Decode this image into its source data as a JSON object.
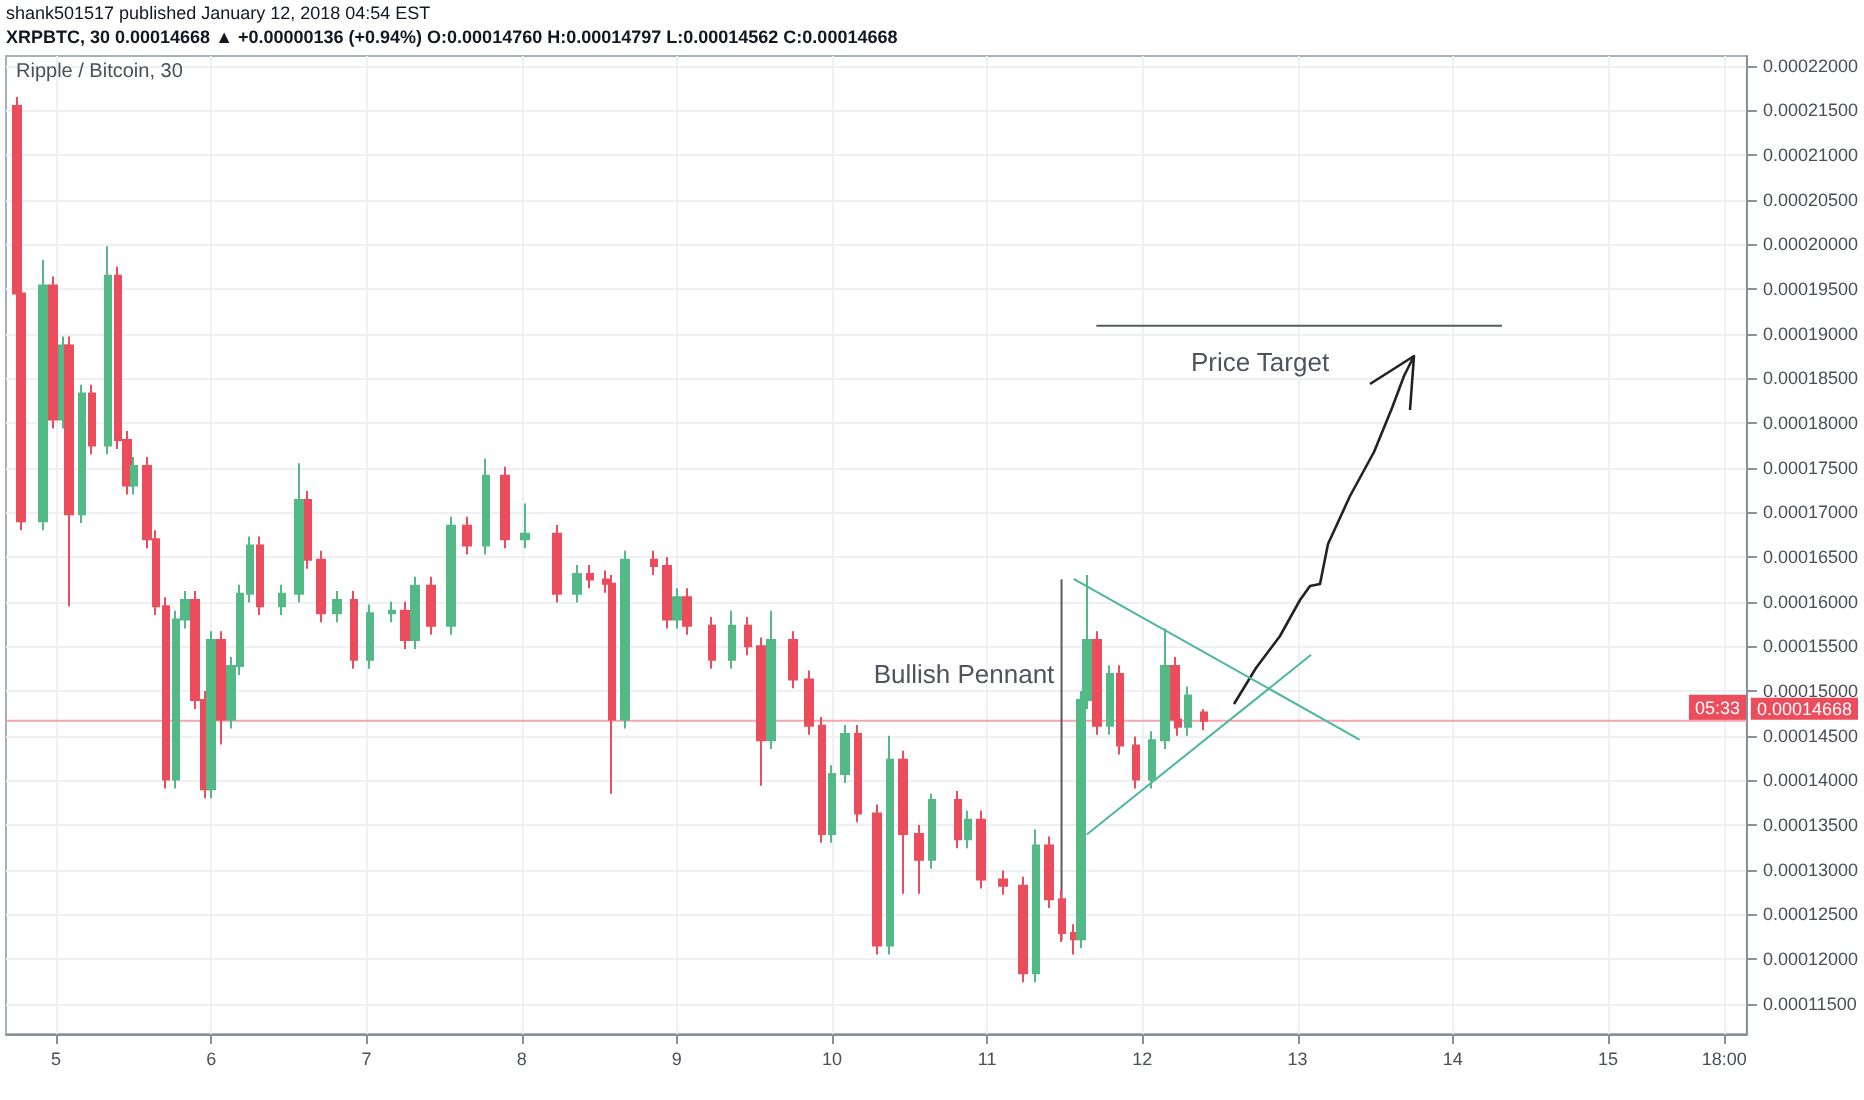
{
  "chart_data": {
    "type": "candlestick",
    "title": "Ripple / Bitcoin, 30",
    "subtitle": "XRPBTC, 30 0.00014668 ▲ +0.00000136 (+0.94%) O:0.00014760 H:0.00014797 L:0.00014562 C:0.00014668",
    "annotations": [
      "shank501517 published January 12, 2018 04:54 EST",
      "05:33",
      "Bullish Pennant",
      "Price Target"
    ],
    "colors": [
      "#eb4d5c",
      "#eb4d5c",
      "#53b987",
      "#eb4d5c",
      "#53b987",
      "#eb4d5c",
      "#53b987",
      "#eb4d5c",
      "#53b987",
      "#eb4d5c",
      "#eb4d5c",
      "#53b987",
      "#eb4d5c",
      "#eb4d5c",
      "#eb4d5c",
      "#53b987",
      "#53b987",
      "#eb4d5c",
      "#eb4d5c",
      "#53b987",
      "#eb4d5c",
      "#53b987",
      "#53b987",
      "#53b987",
      "#eb4d5c",
      "#53b987",
      "#53b987",
      "#eb4d5c",
      "#eb4d5c",
      "#53b987",
      "#eb4d5c",
      "#53b987",
      "#53b987",
      "#eb4d5c",
      "#53b987",
      "#eb4d5c",
      "#53b987",
      "#eb4d5c",
      "#53b987",
      "#eb4d5c",
      "#53b987",
      "#eb4d5c",
      "#53b987",
      "#eb4d5c",
      "#eb4d5c",
      "#eb4d5c",
      "#53b987",
      "#eb4d5c",
      "#eb4d5c",
      "#53b987",
      "#eb4d5c",
      "#eb4d5c",
      "#53b987",
      "#eb4d5c",
      "#eb4d5c",
      "#53b987",
      "#eb4d5c",
      "#eb4d5c",
      "#eb4d5c",
      "#53b987",
      "#53b987",
      "#eb4d5c",
      "#eb4d5c",
      "#53b987",
      "#eb4d5c",
      "#eb4d5c",
      "#53b987",
      "#eb4d5c",
      "#53b987",
      "#eb4d5c",
      "#eb4d5c",
      "#eb4d5c",
      "#53b987",
      "#eb4d5c",
      "#eb4d5c",
      "#eb4d5c",
      "#53b987",
      "#53b987",
      "#eb4d5c",
      "#53b987",
      "#eb4d5c",
      "#eb4d5c",
      "#53b987",
      "#53b987",
      "#eb4d5c",
      "#eb4d5c",
      "#53b987",
      "#eb4d5c"
    ],
    "x": [
      "2018-01-04T18:00",
      "2018-01-04T18:30",
      "2018-01-04T22:00",
      "2018-01-04T23:30",
      "2018-01-05T01:00",
      "2018-01-05T02:00",
      "2018-01-05T04:00",
      "2018-01-05T05:30",
      "2018-01-05T08:00",
      "2018-01-05T09:30",
      "2018-01-05T11:00",
      "2018-01-05T12:00",
      "2018-01-05T14:00",
      "2018-01-05T15:30",
      "2018-01-05T17:00",
      "2018-01-05T18:30",
      "2018-01-05T20:00",
      "2018-01-05T21:30",
      "2018-01-05T23:00",
      "2018-01-06T00:00",
      "2018-01-06T01:30",
      "2018-01-06T03:00",
      "2018-01-06T04:30",
      "2018-01-06T06:00",
      "2018-01-06T07:30",
      "2018-01-06T11:00",
      "2018-01-06T13:30",
      "2018-01-06T15:00",
      "2018-01-06T17:00",
      "2018-01-06T19:30",
      "2018-01-06T22:00",
      "2018-01-07T00:30",
      "2018-01-07T04:00",
      "2018-01-07T06:00",
      "2018-01-07T07:30",
      "2018-01-07T10:00",
      "2018-01-07T13:00",
      "2018-01-07T15:30",
      "2018-01-07T18:30",
      "2018-01-07T21:30",
      "2018-01-08T00:30",
      "2018-01-08T05:30",
      "2018-01-08T08:30",
      "2018-01-08T10:30",
      "2018-01-08T13:00",
      "2018-01-08T14:00",
      "2018-01-08T16:00",
      "2018-01-08T20:30",
      "2018-01-08T22:30",
      "2018-01-09T00:00",
      "2018-01-09T01:30",
      "2018-01-09T05:30",
      "2018-01-09T08:30",
      "2018-01-09T11:00",
      "2018-01-09T13:00",
      "2018-01-09T14:30",
      "2018-01-09T18:00",
      "2018-01-09T20:30",
      "2018-01-09T22:30",
      "2018-01-10T00:00",
      "2018-01-10T02:00",
      "2018-01-10T04:00",
      "2018-01-10T07:00",
      "2018-01-10T09:00",
      "2018-01-10T11:00",
      "2018-01-10T13:30",
      "2018-01-10T15:30",
      "2018-01-10T19:30",
      "2018-01-10T21:00",
      "2018-01-10T23:00",
      "2018-01-11T02:30",
      "2018-01-11T05:30",
      "2018-01-11T07:30",
      "2018-01-11T09:30",
      "2018-01-11T11:30",
      "2018-01-11T13:30",
      "2018-01-11T14:30",
      "2018-01-11T15:30",
      "2018-01-11T17:00",
      "2018-01-11T19:00",
      "2018-01-11T20:30",
      "2018-01-11T23:00",
      "2018-01-12T01:30",
      "2018-01-12T03:30",
      "2018-01-12T05:00",
      "2018-01-12T05:30",
      "2018-01-12T07:00",
      "2018-01-12T09:30"
    ],
    "ohlc": [
      [
        0.0002155,
        0.0002165,
        0.0001935,
        0.0001945
      ],
      [
        0.0001945,
        0.0001955,
        0.000168,
        0.000169
      ],
      [
        0.000169,
        0.0001983,
        0.000168,
        0.0001954
      ],
      [
        0.0001954,
        0.0001964,
        0.0001794,
        0.0001804
      ],
      [
        0.0001804,
        0.0001897,
        0.0001794,
        0.0001887
      ],
      [
        0.0001887,
        0.0001897,
        0.0001595,
        0.0001698
      ],
      [
        0.0001698,
        0.0001843,
        0.0001688,
        0.0001833
      ],
      [
        0.0001833,
        0.0001843,
        0.0001765,
        0.0001775
      ],
      [
        0.0001775,
        0.0001998,
        0.0001765,
        0.0001965
      ],
      [
        0.0001965,
        0.0001975,
        0.0001771,
        0.0001781
      ],
      [
        0.0001781,
        0.0001791,
        0.000172,
        0.000173
      ],
      [
        0.000173,
        0.0001762,
        0.000172,
        0.0001752
      ],
      [
        0.0001752,
        0.0001762,
        0.000166,
        0.000167
      ],
      [
        0.000167,
        0.000168,
        0.0001585,
        0.0001595
      ],
      [
        0.0001595,
        0.0001605,
        0.0001391,
        0.0001401
      ],
      [
        0.0001401,
        0.000159,
        0.0001391,
        0.000158
      ],
      [
        0.000158,
        0.0001612,
        0.000157,
        0.0001602
      ],
      [
        0.0001602,
        0.0001612,
        0.000148,
        0.000149
      ],
      [
        0.000149,
        0.00015,
        0.000138,
        0.000139
      ],
      [
        0.000139,
        0.0001567,
        0.000138,
        0.0001557
      ],
      [
        0.0001557,
        0.0001567,
        0.000144,
        0.0001468
      ],
      [
        0.0001468,
        0.0001538,
        0.0001458,
        0.0001528
      ],
      [
        0.0001528,
        0.0001619,
        0.0001518,
        0.0001609
      ],
      [
        0.0001609,
        0.0001673,
        0.0001599,
        0.0001663
      ],
      [
        0.0001663,
        0.0001673,
        0.0001585,
        0.0001595
      ],
      [
        0.0001595,
        0.0001619,
        0.0001585,
        0.0001609
      ],
      [
        0.0001609,
        0.0001755,
        0.0001599,
        0.0001714
      ],
      [
        0.0001714,
        0.0001724,
        0.0001637,
        0.0001647
      ],
      [
        0.0001647,
        0.0001657,
        0.0001577,
        0.0001587
      ],
      [
        0.0001587,
        0.0001612,
        0.0001577,
        0.0001602
      ],
      [
        0.0001602,
        0.0001612,
        0.0001525,
        0.0001535
      ],
      [
        0.0001535,
        0.0001597,
        0.0001525,
        0.0001587
      ],
      [
        0.0001587,
        0.00016,
        0.0001577,
        0.000159
      ],
      [
        0.000159,
        0.00016,
        0.0001547,
        0.0001557
      ],
      [
        0.0001557,
        0.0001628,
        0.0001547,
        0.0001618
      ],
      [
        0.0001618,
        0.0001628,
        0.0001563,
        0.0001573
      ],
      [
        0.0001573,
        0.0001695,
        0.0001563,
        0.0001685
      ],
      [
        0.0001685,
        0.0001695,
        0.0001653,
        0.0001663
      ],
      [
        0.0001663,
        0.000176,
        0.0001653,
        0.0001741
      ],
      [
        0.0001741,
        0.0001751,
        0.000166,
        0.000167
      ],
      [
        0.000167,
        0.000171,
        0.000166,
        0.0001676
      ],
      [
        0.0001676,
        0.0001686,
        0.0001599,
        0.0001609
      ],
      [
        0.0001609,
        0.0001641,
        0.0001599,
        0.0001631
      ],
      [
        0.0001631,
        0.0001641,
        0.0001615,
        0.0001625
      ],
      [
        0.0001625,
        0.0001635,
        0.000161,
        0.000162
      ],
      [
        0.000162,
        0.000163,
        0.0001385,
        0.0001468
      ],
      [
        0.0001468,
        0.0001657,
        0.0001458,
        0.0001647
      ],
      [
        0.0001647,
        0.0001657,
        0.000163,
        0.000164
      ],
      [
        0.000164,
        0.000165,
        0.000157,
        0.000158
      ],
      [
        0.000158,
        0.0001615,
        0.000157,
        0.0001605
      ],
      [
        0.0001605,
        0.0001615,
        0.0001563,
        0.0001573
      ],
      [
        0.0001573,
        0.0001583,
        0.0001525,
        0.0001535
      ],
      [
        0.0001535,
        0.000159,
        0.0001525,
        0.0001573
      ],
      [
        0.0001573,
        0.0001583,
        0.000154,
        0.000155
      ],
      [
        0.000155,
        0.000156,
        0.0001394,
        0.0001445
      ],
      [
        0.0001445,
        0.000159,
        0.0001435,
        0.0001557
      ],
      [
        0.0001557,
        0.0001567,
        0.0001503,
        0.0001513
      ],
      [
        0.0001513,
        0.0001523,
        0.0001451,
        0.0001461
      ],
      [
        0.0001461,
        0.0001471,
        0.000133,
        0.000134
      ],
      [
        0.000134,
        0.0001417,
        0.000133,
        0.0001407
      ],
      [
        0.0001407,
        0.0001462,
        0.0001397,
        0.0001452
      ],
      [
        0.0001452,
        0.0001462,
        0.0001353,
        0.0001363
      ],
      [
        0.0001363,
        0.0001373,
        0.0001205,
        0.0001215
      ],
      [
        0.0001215,
        0.000145,
        0.0001205,
        0.0001423
      ],
      [
        0.0001423,
        0.0001433,
        0.0001273,
        0.000134
      ],
      [
        0.000134,
        0.000135,
        0.0001273,
        0.0001311
      ],
      [
        0.0001311,
        0.0001385,
        0.0001301,
        0.0001378
      ],
      [
        0.0001378,
        0.0001388,
        0.0001324,
        0.0001334
      ],
      [
        0.0001334,
        0.0001366,
        0.0001324,
        0.0001356
      ],
      [
        0.0001356,
        0.0001366,
        0.0001279,
        0.0001289
      ],
      [
        0.0001289,
        0.0001299,
        0.0001272,
        0.0001282
      ],
      [
        0.0001282,
        0.0001292,
        0.0001174,
        0.0001184
      ],
      [
        0.0001184,
        0.0001345,
        0.0001174,
        0.0001327
      ],
      [
        0.0001327,
        0.0001337,
        0.0001257,
        0.0001267
      ],
      [
        0.0001267,
        0.0001277,
        0.0001219,
        0.0001229
      ],
      [
        0.0001229,
        0.0001239,
        0.0001205,
        0.0001222
      ],
      [
        0.0001222,
        0.00015,
        0.0001212,
        0.000149
      ],
      [
        0.000149,
        0.000163,
        0.000148,
        0.0001557
      ],
      [
        0.0001557,
        0.0001567,
        0.0001451,
        0.0001461
      ],
      [
        0.0001461,
        0.0001529,
        0.0001451,
        0.0001519
      ],
      [
        0.0001519,
        0.0001529,
        0.0001429,
        0.0001439
      ],
      [
        0.0001439,
        0.0001449,
        0.0001391,
        0.0001401
      ],
      [
        0.0001401,
        0.0001455,
        0.0001391,
        0.0001445
      ],
      [
        0.0001445,
        0.000157,
        0.0001435,
        0.0001528
      ],
      [
        0.0001528,
        0.0001538,
        0.0001458,
        0.0001468
      ],
      [
        0.0001468,
        0.0001478,
        0.000145,
        0.000146
      ],
      [
        0.000146,
        0.0001505,
        0.000145,
        0.0001495
      ],
      [
        0.0001476,
        0.00014797,
        0.00014562,
        0.00014668
      ]
    ],
    "series": [
      {
        "type": "line",
        "x": [
          "2018-01-11T11:30",
          "2018-01-11T11:30"
        ],
        "values": [
          0.0001222,
          0.0001624
        ],
        "color": "#555a63"
      },
      {
        "type": "line",
        "x": [
          "2018-01-11T13:30",
          "2018-01-13T09:30"
        ],
        "values": [
          0.0001625,
          0.0001446
        ],
        "color": "#4db6a0"
      },
      {
        "type": "line",
        "x": [
          "2018-01-11T15:30",
          "2018-01-13T02:00"
        ],
        "values": [
          0.000134,
          0.000154
        ],
        "color": "#4db6a0"
      },
      {
        "type": "line",
        "x": [
          "2018-01-11T17:00",
          "2018-01-14T07:30"
        ],
        "values": [
          0.0001909,
          0.0001909
        ],
        "color": "#555a63"
      }
    ],
    "ref_lines": [
      {
        "axis": "y",
        "value": 0.00014668,
        "label": "0.00014668",
        "color": "#f4a6ae"
      }
    ],
    "xlim": [
      "2018-01-04T16:15",
      "2018-01-15T21:30"
    ],
    "xticks": [
      {
        "value": "2018-01-05",
        "label": "5"
      },
      {
        "value": "2018-01-06",
        "label": "6"
      },
      {
        "value": "2018-01-07",
        "label": "7"
      },
      {
        "value": "2018-01-08",
        "label": "8"
      },
      {
        "value": "2018-01-09",
        "label": "9"
      },
      {
        "value": "2018-01-10",
        "label": "10"
      },
      {
        "value": "2018-01-11",
        "label": "11"
      },
      {
        "value": "2018-01-12",
        "label": "12"
      },
      {
        "value": "2018-01-13",
        "label": "13"
      },
      {
        "value": "2018-01-14",
        "label": "14"
      },
      {
        "value": "2018-01-15",
        "label": "15"
      },
      {
        "value": "2018-01-15T18:00",
        "label": "18:00"
      }
    ],
    "ylim": [
      0.0001116,
      0.0002211
    ],
    "yticks": [
      {
        "value": 0.000115,
        "label": "0.00011500"
      },
      {
        "value": 0.00012,
        "label": "0.00012000"
      },
      {
        "value": 0.000125,
        "label": "0.00012500"
      },
      {
        "value": 0.00013,
        "label": "0.00013000"
      },
      {
        "value": 0.000135,
        "label": "0.00013500"
      },
      {
        "value": 0.00014,
        "label": "0.00014000"
      },
      {
        "value": 0.000145,
        "label": "0.00014500"
      },
      {
        "value": 0.00015,
        "label": "0.00015000"
      },
      {
        "value": 0.000155,
        "label": "0.00015500"
      },
      {
        "value": 0.00016,
        "label": "0.00016000"
      },
      {
        "value": 0.000165,
        "label": "0.00016500"
      },
      {
        "value": 0.00017,
        "label": "0.00017000"
      },
      {
        "value": 0.000175,
        "label": "0.00017500"
      },
      {
        "value": 0.00018,
        "label": "0.00018000"
      },
      {
        "value": 0.000185,
        "label": "0.00018500"
      },
      {
        "value": 0.00019,
        "label": "0.00019000"
      },
      {
        "value": 0.000195,
        "label": "0.00019500"
      },
      {
        "value": 0.0002,
        "label": "0.00020000"
      },
      {
        "value": 0.000205,
        "label": "0.00020500"
      },
      {
        "value": 0.00021,
        "label": "0.00021000"
      },
      {
        "value": 0.000215,
        "label": "0.00021500"
      },
      {
        "value": 0.00022,
        "label": "0.00022000"
      }
    ],
    "grid": true
  }
}
